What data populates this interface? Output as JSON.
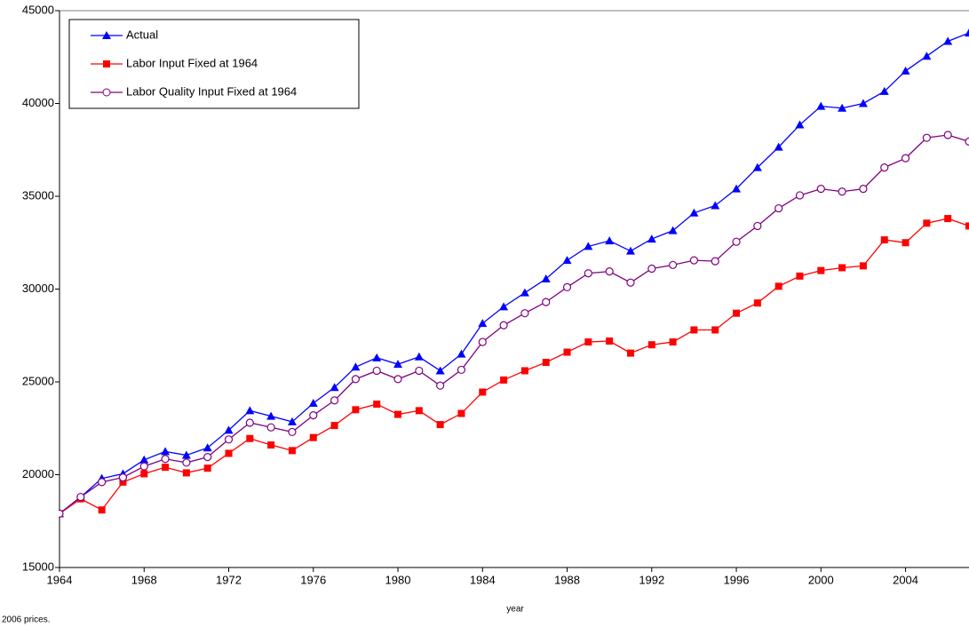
{
  "chart_data": {
    "type": "line",
    "x": [
      1964,
      1965,
      1966,
      1967,
      1968,
      1969,
      1970,
      1971,
      1972,
      1973,
      1974,
      1975,
      1976,
      1977,
      1978,
      1979,
      1980,
      1981,
      1982,
      1983,
      1984,
      1985,
      1986,
      1987,
      1988,
      1989,
      1990,
      1991,
      1992,
      1993,
      1994,
      1995,
      1996,
      1997,
      1998,
      1999,
      2000,
      2001,
      2002,
      2003,
      2004,
      2005,
      2006,
      2007
    ],
    "series": [
      {
        "name": "Actual",
        "color": "#0000ff",
        "marker": "triangle",
        "values": [
          17900,
          18800,
          19800,
          20050,
          20800,
          21250,
          21050,
          21450,
          22400,
          23450,
          23150,
          22850,
          23850,
          24700,
          25800,
          26300,
          25950,
          26350,
          25600,
          26500,
          28150,
          29050,
          29800,
          30550,
          31550,
          32300,
          32600,
          32050,
          32700,
          33150,
          34100,
          34500,
          35400,
          36550,
          37650,
          38850,
          39850,
          39750,
          40000,
          40650,
          41750,
          42550,
          43350,
          43800
        ]
      },
      {
        "name": "Labor Input Fixed at 1964",
        "color": "#ff0000",
        "marker": "square",
        "values": [
          17900,
          18700,
          18100,
          19600,
          20050,
          20400,
          20100,
          20350,
          21150,
          21950,
          21600,
          21300,
          22000,
          22650,
          23500,
          23800,
          23250,
          23450,
          22700,
          23300,
          24450,
          25100,
          25600,
          26050,
          26600,
          27150,
          27200,
          26550,
          27000,
          27150,
          27800,
          27800,
          28700,
          29250,
          30150,
          30700,
          31000,
          31150,
          31250,
          32650,
          32500,
          33550,
          33800,
          33400
        ]
      },
      {
        "name": "Labor Quality Input Fixed at 1964",
        "color": "#800080",
        "marker": "circle",
        "values": [
          17900,
          18800,
          19600,
          19850,
          20450,
          20850,
          20650,
          20950,
          21900,
          22800,
          22550,
          22300,
          23200,
          24000,
          25150,
          25600,
          25150,
          25600,
          24800,
          25650,
          27150,
          28050,
          28700,
          29300,
          30100,
          30850,
          30950,
          30350,
          31100,
          31300,
          31550,
          31500,
          32550,
          33400,
          34350,
          35050,
          35400,
          35250,
          35400,
          36550,
          37050,
          38150,
          38300,
          37950
        ]
      }
    ],
    "xlim": [
      1964,
      2007
    ],
    "xticks": [
      1964,
      1968,
      1972,
      1976,
      1980,
      1984,
      1988,
      1992,
      1996,
      2000,
      2004
    ],
    "ylim": [
      15000,
      45000
    ],
    "yticks": [
      15000,
      20000,
      25000,
      30000,
      35000,
      40000,
      45000
    ],
    "xlabel": "year",
    "note": "2006 prices.",
    "legend": "upper left"
  }
}
